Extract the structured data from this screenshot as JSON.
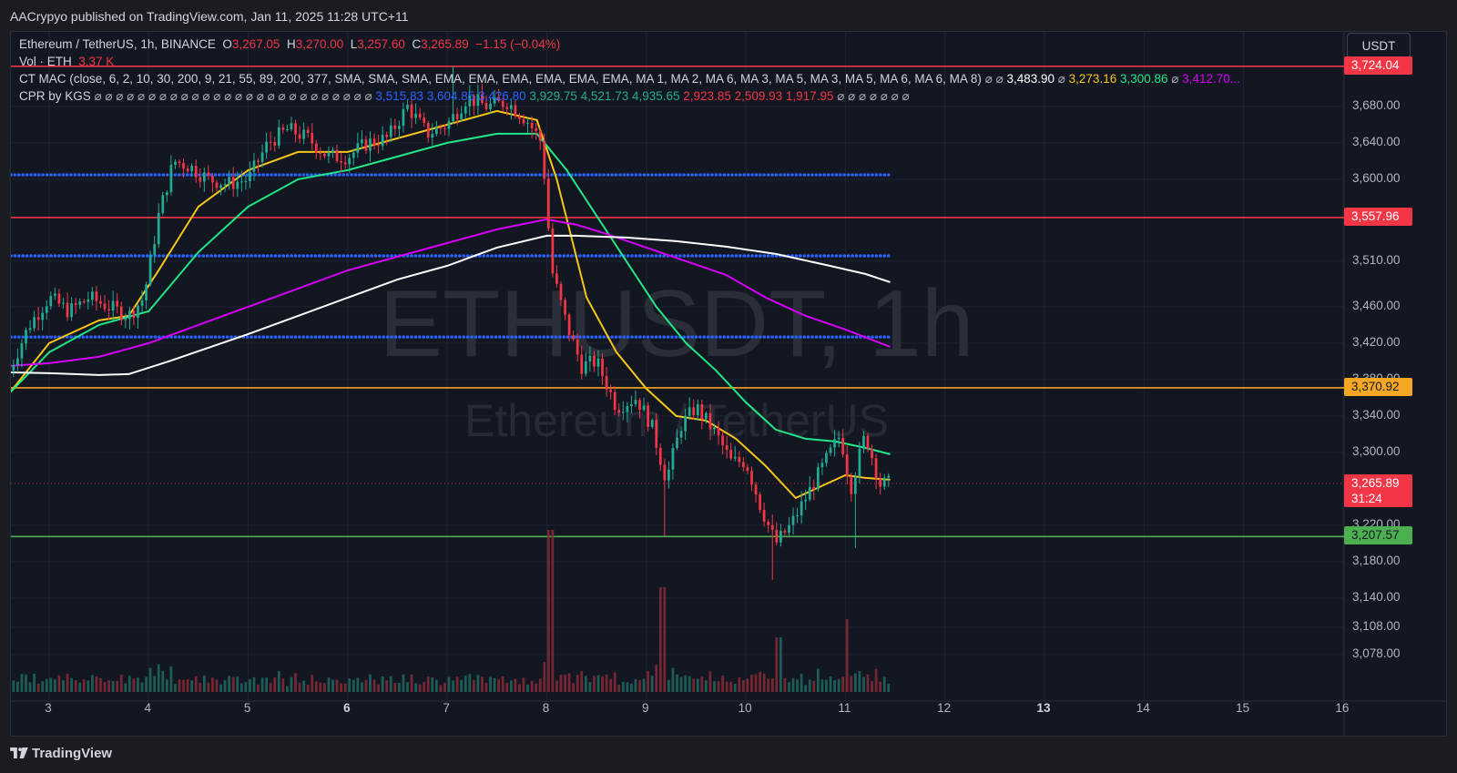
{
  "header": {
    "published": "AACrypyo published on TradingView.com, Jan 11, 2025 11:28 UTC+11"
  },
  "legend": {
    "symbol": "Ethereum / TetherUS, 1h, BINANCE",
    "o_label": "O",
    "o_value": "3,267.05",
    "h_label": "H",
    "h_value": "3,270.00",
    "l_label": "L",
    "l_value": "3,257.60",
    "c_label": "C",
    "c_value": "3,265.89",
    "change": "−1.15 (−0.04%)",
    "vol_label": "Vol · ETH",
    "vol_value": "3.37 K",
    "ctmac_label": "CT MAC (close, 6, 2, 10, 30, 200, 9, 21, 55, 89, 200, 377, SMA, SMA, SMA, EMA, EMA, EMA, EMA, EMA, EMA, MA 1, MA 2, MA 6, MA 3, MA 5, MA 3, MA 5, MA 6, MA 6, MA 8)",
    "ctmac_values": [
      {
        "v": "⌀ ⌀",
        "c": "#b2b5be"
      },
      {
        "v": "3,483.90",
        "c": "#ffffff"
      },
      {
        "v": "⌀",
        "c": "#b2b5be"
      },
      {
        "v": "3,273.16",
        "c": "#f5c518"
      },
      {
        "v": "3,300.86",
        "c": "#21e786"
      },
      {
        "v": "⌀",
        "c": "#b2b5be"
      },
      {
        "v": "3,412.70...",
        "c": "#d500f9"
      }
    ],
    "cpr_label": "CPR by KGS",
    "cpr_values": [
      {
        "v": "3,515.83",
        "c": "#2962ff"
      },
      {
        "v": "3,604.85",
        "c": "#2962ff"
      },
      {
        "v": "3,426.80",
        "c": "#2962ff"
      },
      {
        "v": "3,929.75",
        "c": "#22ab94"
      },
      {
        "v": "4,521.73",
        "c": "#22ab94"
      },
      {
        "v": "4,935.65",
        "c": "#22ab94"
      },
      {
        "v": "2,923.85",
        "c": "#f23645"
      },
      {
        "v": "2,509.93",
        "c": "#f23645"
      },
      {
        "v": "1,917.95",
        "c": "#f23645"
      }
    ]
  },
  "currency_button": "USDT",
  "watermark": {
    "line1": "ETHUSDT, 1h",
    "line2": "Ethereum / TetherUS"
  },
  "footer": {
    "brand": "TradingView"
  },
  "colors": {
    "up": "#22ab94",
    "down": "#f23645",
    "ma_yellow": "#f5c518",
    "ma_green": "#21e786",
    "ma_magenta": "#d500f9",
    "ma_white": "#ffffff",
    "cpr_blue": "#2962ff",
    "h_red": "#f23645",
    "h_orange": "#f5a623",
    "h_green": "#4caf50"
  },
  "chart_data": {
    "type": "candlestick",
    "title": "Ethereum / TetherUS, 1h, BINANCE",
    "x_ticks": [
      {
        "label": "3",
        "day": 3,
        "bold": false
      },
      {
        "label": "4",
        "day": 4,
        "bold": false
      },
      {
        "label": "5",
        "day": 5,
        "bold": false
      },
      {
        "label": "6",
        "day": 6,
        "bold": true
      },
      {
        "label": "7",
        "day": 7,
        "bold": false
      },
      {
        "label": "8",
        "day": 8,
        "bold": false
      },
      {
        "label": "9",
        "day": 9,
        "bold": false
      },
      {
        "label": "10",
        "day": 10,
        "bold": false
      },
      {
        "label": "11",
        "day": 11,
        "bold": false
      },
      {
        "label": "12",
        "day": 12,
        "bold": false
      },
      {
        "label": "13",
        "day": 13,
        "bold": true
      },
      {
        "label": "14",
        "day": 14,
        "bold": false
      },
      {
        "label": "15",
        "day": 15,
        "bold": false
      },
      {
        "label": "16",
        "day": 16,
        "bold": false
      }
    ],
    "y_ticks": [
      "3,680.00",
      "3,640.00",
      "3,600.00",
      "3,510.00",
      "3,460.00",
      "3,420.00",
      "3,380.00",
      "3,340.00",
      "3,300.00",
      "3,220.00",
      "3,180.00",
      "3,140.00",
      "3,108.00",
      "3,078.00"
    ],
    "price_tags": [
      {
        "label": "3,724.04",
        "price": 3724.04,
        "color": "#f23645",
        "text": "#ffffff"
      },
      {
        "label": "3,557.96",
        "price": 3557.96,
        "color": "#f23645",
        "text": "#ffffff"
      },
      {
        "label": "3,370.92",
        "price": 3370.92,
        "color": "#f5a623",
        "text": "#131722"
      },
      {
        "label": "3,265.89",
        "price": 3265.89,
        "color": "#f23645",
        "text": "#ffffff",
        "countdown": "31:24"
      },
      {
        "label": "3,207.57",
        "price": 3207.57,
        "color": "#4caf50",
        "text": "#131722"
      }
    ],
    "horizontal_lines": [
      {
        "price": 3724.04,
        "style": "solid",
        "color": "#f23645",
        "to_axis": true
      },
      {
        "price": 3557.96,
        "style": "solid",
        "color": "#f23645",
        "to_axis": true
      },
      {
        "price": 3370.92,
        "style": "solid",
        "color": "#f5a623",
        "to_axis": true
      },
      {
        "price": 3207.57,
        "style": "solid",
        "color": "#4caf50",
        "to_axis": true
      },
      {
        "price": 3604.85,
        "style": "dots",
        "color": "#2962ff",
        "to_axis": false
      },
      {
        "price": 3515.83,
        "style": "dots",
        "color": "#2962ff",
        "to_axis": false
      },
      {
        "price": 3426.8,
        "style": "dots",
        "color": "#2962ff",
        "to_axis": false
      }
    ],
    "candles_close_path": [
      [
        2.6,
        3390
      ],
      [
        2.8,
        3440
      ],
      [
        3.0,
        3470
      ],
      [
        3.2,
        3455
      ],
      [
        3.4,
        3470
      ],
      [
        3.6,
        3460
      ],
      [
        3.8,
        3450
      ],
      [
        3.95,
        3470
      ],
      [
        4.1,
        3560
      ],
      [
        4.25,
        3620
      ],
      [
        4.4,
        3615
      ],
      [
        4.6,
        3600
      ],
      [
        4.8,
        3595
      ],
      [
        5.0,
        3600
      ],
      [
        5.2,
        3640
      ],
      [
        5.4,
        3655
      ],
      [
        5.6,
        3645
      ],
      [
        5.8,
        3625
      ],
      [
        6.0,
        3625
      ],
      [
        6.2,
        3640
      ],
      [
        6.4,
        3645
      ],
      [
        6.6,
        3680
      ],
      [
        6.8,
        3650
      ],
      [
        7.0,
        3660
      ],
      [
        7.2,
        3690
      ],
      [
        7.4,
        3680
      ],
      [
        7.6,
        3685
      ],
      [
        7.8,
        3665
      ],
      [
        7.95,
        3640
      ],
      [
        8.05,
        3500
      ],
      [
        8.2,
        3440
      ],
      [
        8.35,
        3395
      ],
      [
        8.5,
        3400
      ],
      [
        8.7,
        3350
      ],
      [
        8.9,
        3360
      ],
      [
        9.05,
        3330
      ],
      [
        9.2,
        3270
      ],
      [
        9.35,
        3330
      ],
      [
        9.5,
        3350
      ],
      [
        9.7,
        3320
      ],
      [
        9.85,
        3290
      ],
      [
        10.0,
        3290
      ],
      [
        10.15,
        3240
      ],
      [
        10.3,
        3200
      ],
      [
        10.45,
        3220
      ],
      [
        10.6,
        3250
      ],
      [
        10.8,
        3290
      ],
      [
        10.95,
        3320
      ],
      [
        11.05,
        3260
      ],
      [
        11.2,
        3320
      ],
      [
        11.35,
        3265
      ],
      [
        11.45,
        3266
      ]
    ],
    "candle_start_day": 2.6,
    "candle_end_day": 11.47,
    "moving_averages": [
      {
        "name": "MA yellow",
        "color": "#f5c518",
        "points": [
          [
            2.6,
            3365
          ],
          [
            3.0,
            3420
          ],
          [
            3.5,
            3445
          ],
          [
            3.8,
            3450
          ],
          [
            4.1,
            3500
          ],
          [
            4.5,
            3570
          ],
          [
            5.0,
            3610
          ],
          [
            5.5,
            3630
          ],
          [
            6.0,
            3630
          ],
          [
            6.5,
            3645
          ],
          [
            7.0,
            3660
          ],
          [
            7.5,
            3675
          ],
          [
            7.9,
            3665
          ],
          [
            8.1,
            3600
          ],
          [
            8.4,
            3470
          ],
          [
            8.7,
            3410
          ],
          [
            9.0,
            3370
          ],
          [
            9.3,
            3340
          ],
          [
            9.6,
            3335
          ],
          [
            9.9,
            3315
          ],
          [
            10.2,
            3285
          ],
          [
            10.5,
            3250
          ],
          [
            10.8,
            3265
          ],
          [
            11.0,
            3275
          ],
          [
            11.2,
            3272
          ],
          [
            11.45,
            3270
          ]
        ]
      },
      {
        "name": "MA green",
        "color": "#21e786",
        "points": [
          [
            2.6,
            3365
          ],
          [
            3.0,
            3410
          ],
          [
            3.5,
            3440
          ],
          [
            4.0,
            3455
          ],
          [
            4.5,
            3520
          ],
          [
            5.0,
            3570
          ],
          [
            5.5,
            3600
          ],
          [
            6.0,
            3610
          ],
          [
            6.5,
            3625
          ],
          [
            7.0,
            3640
          ],
          [
            7.5,
            3650
          ],
          [
            7.9,
            3650
          ],
          [
            8.2,
            3610
          ],
          [
            8.5,
            3560
          ],
          [
            8.8,
            3510
          ],
          [
            9.1,
            3460
          ],
          [
            9.4,
            3420
          ],
          [
            9.7,
            3390
          ],
          [
            10.0,
            3355
          ],
          [
            10.3,
            3325
          ],
          [
            10.6,
            3315
          ],
          [
            10.9,
            3312
          ],
          [
            11.2,
            3305
          ],
          [
            11.45,
            3298
          ]
        ]
      },
      {
        "name": "MA magenta",
        "color": "#d500f9",
        "points": [
          [
            2.6,
            3395
          ],
          [
            3.0,
            3398
          ],
          [
            3.5,
            3405
          ],
          [
            4.0,
            3420
          ],
          [
            4.5,
            3440
          ],
          [
            5.0,
            3460
          ],
          [
            5.5,
            3480
          ],
          [
            6.0,
            3500
          ],
          [
            6.5,
            3515
          ],
          [
            7.0,
            3530
          ],
          [
            7.5,
            3545
          ],
          [
            8.0,
            3556
          ],
          [
            8.3,
            3550
          ],
          [
            8.6,
            3540
          ],
          [
            9.0,
            3525
          ],
          [
            9.4,
            3510
          ],
          [
            9.8,
            3495
          ],
          [
            10.2,
            3470
          ],
          [
            10.6,
            3450
          ],
          [
            11.0,
            3435
          ],
          [
            11.45,
            3416
          ]
        ]
      },
      {
        "name": "MA white",
        "color": "#ffffff",
        "points": [
          [
            2.6,
            3388
          ],
          [
            3.0,
            3387
          ],
          [
            3.5,
            3385
          ],
          [
            3.8,
            3386
          ],
          [
            4.2,
            3400
          ],
          [
            4.6,
            3415
          ],
          [
            5.0,
            3430
          ],
          [
            5.5,
            3450
          ],
          [
            6.0,
            3470
          ],
          [
            6.5,
            3490
          ],
          [
            7.0,
            3505
          ],
          [
            7.5,
            3525
          ],
          [
            8.0,
            3538
          ],
          [
            8.3,
            3538
          ],
          [
            8.8,
            3536
          ],
          [
            9.3,
            3532
          ],
          [
            9.8,
            3526
          ],
          [
            10.3,
            3518
          ],
          [
            10.8,
            3506
          ],
          [
            11.2,
            3496
          ],
          [
            11.45,
            3487
          ]
        ]
      }
    ]
  }
}
